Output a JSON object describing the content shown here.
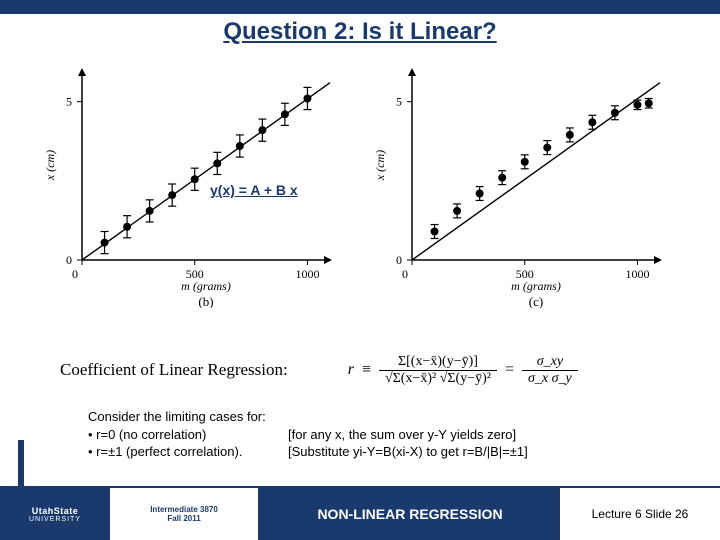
{
  "title": "Question 2:  Is it Linear?",
  "equation": "y(x) = A + B x",
  "chart_b": {
    "type": "scatter-errorbar-line",
    "xlabel": "m (grams)",
    "ylabel": "x (cm)",
    "panel_label": "(b)",
    "xlim": [
      0,
      1100
    ],
    "ylim": [
      0,
      6
    ],
    "xticks": [
      0,
      500,
      1000
    ],
    "yticks": [
      0,
      5
    ],
    "axis_color": "#000000",
    "bg_color": "#ffffff",
    "marker_color": "#000000",
    "line_color": "#000000",
    "marker_size": 4,
    "errorbar_halfheight": 0.35,
    "label_fontsize": 12,
    "points": [
      {
        "x": 100,
        "y": 0.55,
        "err": 0.35
      },
      {
        "x": 200,
        "y": 1.05,
        "err": 0.35
      },
      {
        "x": 300,
        "y": 1.55,
        "err": 0.35
      },
      {
        "x": 400,
        "y": 2.05,
        "err": 0.35
      },
      {
        "x": 500,
        "y": 2.55,
        "err": 0.35
      },
      {
        "x": 600,
        "y": 3.05,
        "err": 0.35
      },
      {
        "x": 700,
        "y": 3.6,
        "err": 0.35
      },
      {
        "x": 800,
        "y": 4.1,
        "err": 0.35
      },
      {
        "x": 900,
        "y": 4.6,
        "err": 0.35
      },
      {
        "x": 1000,
        "y": 5.1,
        "err": 0.35
      }
    ],
    "fit_line": {
      "x1": 0,
      "y1": 0,
      "x2": 1100,
      "y2": 5.6
    }
  },
  "chart_c": {
    "type": "scatter-errorbar-line",
    "xlabel": "m (grams)",
    "ylabel": "x (cm)",
    "panel_label": "(c)",
    "xlim": [
      0,
      1100
    ],
    "ylim": [
      0,
      6
    ],
    "xticks": [
      0,
      500,
      1000
    ],
    "yticks": [
      0,
      5
    ],
    "axis_color": "#000000",
    "bg_color": "#ffffff",
    "marker_color": "#000000",
    "line_color": "#000000",
    "marker_size": 4,
    "errorbar_halfheight": 0.22,
    "label_fontsize": 12,
    "points": [
      {
        "x": 100,
        "y": 0.9,
        "err": 0.22
      },
      {
        "x": 200,
        "y": 1.55,
        "err": 0.22
      },
      {
        "x": 300,
        "y": 2.1,
        "err": 0.22
      },
      {
        "x": 400,
        "y": 2.6,
        "err": 0.22
      },
      {
        "x": 500,
        "y": 3.1,
        "err": 0.22
      },
      {
        "x": 600,
        "y": 3.55,
        "err": 0.22
      },
      {
        "x": 700,
        "y": 3.95,
        "err": 0.22
      },
      {
        "x": 800,
        "y": 4.35,
        "err": 0.22
      },
      {
        "x": 900,
        "y": 4.65,
        "err": 0.22
      },
      {
        "x": 1000,
        "y": 4.9,
        "err": 0.15
      },
      {
        "x": 1050,
        "y": 4.95,
        "err": 0.15
      }
    ],
    "fit_line": {
      "x1": 0,
      "y1": 0,
      "x2": 1100,
      "y2": 5.6
    }
  },
  "coefficient": {
    "label": "Coefficient of Linear Regression:",
    "r_symbol": "r",
    "equiv": "≡",
    "numerator": "Σ[(x−x̄)(y−ȳ)]",
    "denominator": "√Σ(x−x̄)² √Σ(y−ȳ)²",
    "eq2_num": "σ_xy",
    "eq2_den": "σ_x σ_y"
  },
  "consider": {
    "intro": "Consider the limiting cases for:",
    "bullet1_left": "• r=0 (no correlation)",
    "bullet1_right": "[for any x, the sum over y-Y yields zero]",
    "bullet2_left": "• r=±1 (perfect correlation).",
    "bullet2_right": "[Substitute yi-Y=B(xi-X)  to get r=B/|B|=±1]"
  },
  "footer": {
    "logo_top": "UtahState",
    "logo_bottom": "UNIVERSITY",
    "course_line1": "Intermediate 3870",
    "course_line2": "Fall 2011",
    "center": "NON-LINEAR REGRESSION",
    "right": "Lecture 6   Slide 26"
  }
}
